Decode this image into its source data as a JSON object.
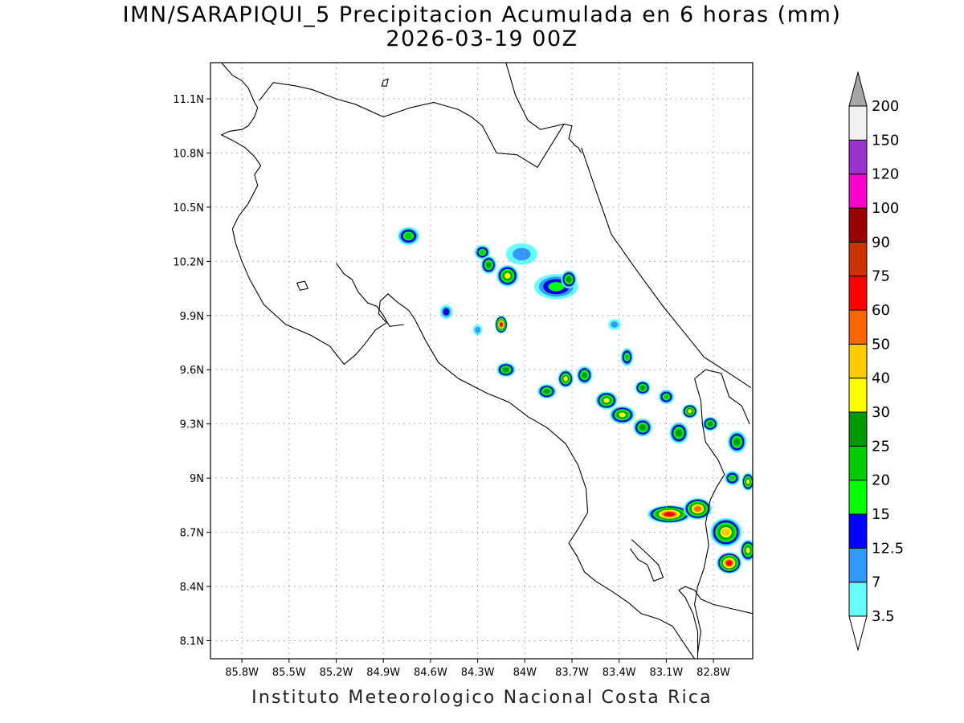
{
  "title": {
    "line1": "IMN/SARAPIQUI_5 Precipitacion Acumulada en 6 horas (mm)",
    "line2": "2026-03-19 00Z"
  },
  "footer": "Instituto Meteorologico Nacional Costa Rica",
  "map": {
    "lon_range": [
      -86.0,
      -82.55
    ],
    "lat_range": [
      8.0,
      11.3
    ],
    "lon_ticks": [
      {
        "value": -85.8,
        "label": "85.8W"
      },
      {
        "value": -85.5,
        "label": "85.5W"
      },
      {
        "value": -85.2,
        "label": "85.2W"
      },
      {
        "value": -84.9,
        "label": "84.9W"
      },
      {
        "value": -84.6,
        "label": "84.6W"
      },
      {
        "value": -84.3,
        "label": "84.3W"
      },
      {
        "value": -84.0,
        "label": "84W"
      },
      {
        "value": -83.7,
        "label": "83.7W"
      },
      {
        "value": -83.4,
        "label": "83.4W"
      },
      {
        "value": -83.1,
        "label": "83.1W"
      },
      {
        "value": -82.8,
        "label": "82.8W"
      }
    ],
    "lat_ticks": [
      {
        "value": 11.1,
        "label": "11.1N"
      },
      {
        "value": 10.8,
        "label": "10.8N"
      },
      {
        "value": 10.5,
        "label": "10.5N"
      },
      {
        "value": 10.2,
        "label": "10.2N"
      },
      {
        "value": 9.9,
        "label": "9.9N"
      },
      {
        "value": 9.6,
        "label": "9.6N"
      },
      {
        "value": 9.3,
        "label": "9.3N"
      },
      {
        "value": 9.0,
        "label": "9N"
      },
      {
        "value": 8.7,
        "label": "8.7N"
      },
      {
        "value": 8.4,
        "label": "8.4N"
      },
      {
        "value": 8.1,
        "label": "8.1N"
      }
    ],
    "grid": true,
    "coastlines": [
      [
        [
          -85.93,
          11.3
        ],
        [
          -85.86,
          11.23
        ],
        [
          -85.8,
          11.2
        ],
        [
          -85.76,
          11.16
        ],
        [
          -85.72,
          11.08
        ],
        [
          -85.7,
          11.05
        ],
        [
          -85.72,
          11.0
        ],
        [
          -85.76,
          10.95
        ],
        [
          -85.8,
          10.93
        ],
        [
          -85.88,
          10.92
        ],
        [
          -85.93,
          10.9
        ],
        [
          -85.86,
          10.87
        ],
        [
          -85.78,
          10.83
        ],
        [
          -85.72,
          10.78
        ],
        [
          -85.68,
          10.73
        ],
        [
          -85.72,
          10.68
        ],
        [
          -85.7,
          10.62
        ],
        [
          -85.76,
          10.52
        ],
        [
          -85.82,
          10.45
        ],
        [
          -85.86,
          10.38
        ],
        [
          -85.84,
          10.3
        ],
        [
          -85.8,
          10.2
        ],
        [
          -85.75,
          10.1
        ],
        [
          -85.66,
          9.96
        ],
        [
          -85.52,
          9.85
        ],
        [
          -85.36,
          9.79
        ],
        [
          -85.24,
          9.73
        ],
        [
          -85.15,
          9.63
        ],
        [
          -85.08,
          9.68
        ],
        [
          -85.02,
          9.74
        ],
        [
          -84.95,
          9.82
        ],
        [
          -84.88,
          9.86
        ],
        [
          -84.93,
          9.91
        ],
        [
          -84.92,
          9.98
        ],
        [
          -84.87,
          10.02
        ],
        [
          -84.82,
          9.98
        ],
        [
          -84.74,
          9.93
        ],
        [
          -84.7,
          9.88
        ],
        [
          -84.63,
          9.76
        ],
        [
          -84.55,
          9.64
        ],
        [
          -84.42,
          9.55
        ],
        [
          -84.24,
          9.47
        ],
        [
          -84.1,
          9.42
        ],
        [
          -83.98,
          9.34
        ],
        [
          -83.86,
          9.28
        ],
        [
          -83.74,
          9.19
        ],
        [
          -83.66,
          9.07
        ],
        [
          -83.61,
          8.94
        ],
        [
          -83.6,
          8.81
        ],
        [
          -83.66,
          8.72
        ],
        [
          -83.72,
          8.64
        ],
        [
          -83.67,
          8.57
        ],
        [
          -83.62,
          8.48
        ],
        [
          -83.55,
          8.43
        ],
        [
          -83.44,
          8.37
        ],
        [
          -83.34,
          8.31
        ],
        [
          -83.26,
          8.25
        ],
        [
          -83.15,
          8.22
        ],
        [
          -83.06,
          8.18
        ],
        [
          -82.96,
          8.05
        ],
        [
          -82.92,
          8.0
        ]
      ],
      [
        [
          -85.2,
          10.19
        ],
        [
          -85.15,
          10.13
        ],
        [
          -85.1,
          10.1
        ],
        [
          -85.06,
          10.03
        ],
        [
          -85.0,
          9.97
        ],
        [
          -84.94,
          9.95
        ],
        [
          -84.9,
          9.9
        ],
        [
          -84.86,
          9.84
        ],
        [
          -84.77,
          9.85
        ]
      ],
      [
        [
          -82.9,
          8.0
        ],
        [
          -82.9,
          8.15
        ],
        [
          -82.93,
          8.25
        ],
        [
          -82.98,
          8.34
        ],
        [
          -83.02,
          8.38
        ],
        [
          -82.98,
          8.4
        ],
        [
          -82.92,
          8.38
        ],
        [
          -82.88,
          8.33
        ],
        [
          -82.8,
          8.3
        ],
        [
          -82.7,
          8.28
        ],
        [
          -82.55,
          8.25
        ]
      ],
      [
        [
          -83.32,
          8.66
        ],
        [
          -83.22,
          8.58
        ],
        [
          -83.15,
          8.52
        ],
        [
          -83.12,
          8.45
        ],
        [
          -83.18,
          8.43
        ],
        [
          -83.22,
          8.52
        ],
        [
          -83.28,
          8.55
        ],
        [
          -83.33,
          8.61
        ]
      ],
      [
        [
          -85.69,
          11.09
        ],
        [
          -85.6,
          11.19
        ],
        [
          -85.45,
          11.17
        ],
        [
          -85.35,
          11.15
        ],
        [
          -85.2,
          11.1
        ],
        [
          -85.08,
          11.07
        ],
        [
          -84.9,
          11.0
        ],
        [
          -84.73,
          11.05
        ],
        [
          -84.58,
          11.08
        ],
        [
          -84.42,
          11.04
        ],
        [
          -84.34,
          11.0
        ],
        [
          -84.27,
          10.95
        ],
        [
          -84.18,
          10.8
        ],
        [
          -84.05,
          10.79
        ],
        [
          -83.92,
          10.72
        ],
        [
          -83.75,
          10.96
        ],
        [
          -83.7,
          10.95
        ],
        [
          -83.72,
          10.88
        ],
        [
          -83.68,
          10.84
        ],
        [
          -83.66,
          10.83
        ],
        [
          -83.64,
          10.8
        ]
      ],
      [
        [
          -83.64,
          10.83
        ],
        [
          -83.55,
          10.6
        ],
        [
          -83.45,
          10.35
        ],
        [
          -83.28,
          10.14
        ],
        [
          -83.12,
          9.95
        ],
        [
          -82.98,
          9.8
        ],
        [
          -82.86,
          9.67
        ],
        [
          -82.7,
          9.58
        ],
        [
          -82.56,
          9.5
        ]
      ],
      [
        [
          -84.12,
          11.3
        ],
        [
          -84.06,
          11.12
        ],
        [
          -83.98,
          10.98
        ],
        [
          -83.9,
          10.93
        ],
        [
          -83.75,
          10.96
        ]
      ]
    ],
    "borders": [
      [
        [
          -82.92,
          9.55
        ],
        [
          -82.85,
          9.6
        ],
        [
          -82.75,
          9.58
        ],
        [
          -82.7,
          9.45
        ],
        [
          -82.62,
          9.4
        ],
        [
          -82.57,
          9.3
        ]
      ],
      [
        [
          -82.9,
          8.03
        ],
        [
          -82.88,
          8.15
        ],
        [
          -82.92,
          8.3
        ],
        [
          -82.9,
          8.4
        ],
        [
          -82.86,
          8.5
        ],
        [
          -82.83,
          8.63
        ],
        [
          -82.85,
          8.75
        ],
        [
          -82.82,
          8.88
        ],
        [
          -82.78,
          8.95
        ],
        [
          -82.73,
          9.02
        ],
        [
          -82.77,
          9.1
        ],
        [
          -82.85,
          9.2
        ],
        [
          -82.87,
          9.3
        ],
        [
          -82.88,
          9.43
        ],
        [
          -82.92,
          9.55
        ]
      ]
    ],
    "islands": [
      [
        [
          -85.45,
          10.08
        ],
        [
          -85.4,
          10.09
        ],
        [
          -85.38,
          10.05
        ],
        [
          -85.43,
          10.04
        ]
      ],
      [
        [
          -84.9,
          11.2
        ],
        [
          -84.87,
          11.21
        ],
        [
          -84.88,
          11.17
        ],
        [
          -84.91,
          11.17
        ]
      ]
    ]
  },
  "precip": {
    "cells": [
      {
        "lon": -84.74,
        "lat": 10.34,
        "rx": 0.07,
        "ry": 0.05,
        "peak": 20
      },
      {
        "lon": -84.27,
        "lat": 10.25,
        "rx": 0.05,
        "ry": 0.04,
        "peak": 20
      },
      {
        "lon": -84.23,
        "lat": 10.18,
        "rx": 0.05,
        "ry": 0.05,
        "peak": 25
      },
      {
        "lon": -84.11,
        "lat": 10.12,
        "rx": 0.07,
        "ry": 0.06,
        "peak": 30
      },
      {
        "lon": -84.02,
        "lat": 10.24,
        "rx": 0.1,
        "ry": 0.06,
        "peak": 7
      },
      {
        "lon": -83.8,
        "lat": 10.06,
        "rx": 0.14,
        "ry": 0.07,
        "peak": 15
      },
      {
        "lon": -83.72,
        "lat": 10.1,
        "rx": 0.05,
        "ry": 0.05,
        "peak": 25
      },
      {
        "lon": -84.15,
        "lat": 9.85,
        "rx": 0.04,
        "ry": 0.05,
        "peak": 60
      },
      {
        "lon": -84.12,
        "lat": 9.6,
        "rx": 0.06,
        "ry": 0.04,
        "peak": 25
      },
      {
        "lon": -83.86,
        "lat": 9.48,
        "rx": 0.06,
        "ry": 0.04,
        "peak": 25
      },
      {
        "lon": -83.74,
        "lat": 9.55,
        "rx": 0.05,
        "ry": 0.05,
        "peak": 30
      },
      {
        "lon": -83.62,
        "lat": 9.57,
        "rx": 0.05,
        "ry": 0.05,
        "peak": 25
      },
      {
        "lon": -83.48,
        "lat": 9.43,
        "rx": 0.07,
        "ry": 0.05,
        "peak": 30
      },
      {
        "lon": -83.38,
        "lat": 9.35,
        "rx": 0.08,
        "ry": 0.05,
        "peak": 30
      },
      {
        "lon": -83.25,
        "lat": 9.28,
        "rx": 0.06,
        "ry": 0.05,
        "peak": 25
      },
      {
        "lon": -83.25,
        "lat": 9.5,
        "rx": 0.05,
        "ry": 0.04,
        "peak": 25
      },
      {
        "lon": -83.35,
        "lat": 9.67,
        "rx": 0.04,
        "ry": 0.05,
        "peak": 20
      },
      {
        "lon": -83.1,
        "lat": 9.45,
        "rx": 0.05,
        "ry": 0.04,
        "peak": 20
      },
      {
        "lon": -83.02,
        "lat": 9.25,
        "rx": 0.06,
        "ry": 0.06,
        "peak": 25
      },
      {
        "lon": -82.95,
        "lat": 9.37,
        "rx": 0.05,
        "ry": 0.04,
        "peak": 30
      },
      {
        "lon": -82.82,
        "lat": 9.3,
        "rx": 0.05,
        "ry": 0.04,
        "peak": 25
      },
      {
        "lon": -82.65,
        "lat": 9.2,
        "rx": 0.06,
        "ry": 0.06,
        "peak": 25
      },
      {
        "lon": -82.58,
        "lat": 8.98,
        "rx": 0.04,
        "ry": 0.05,
        "peak": 30
      },
      {
        "lon": -83.08,
        "lat": 8.8,
        "rx": 0.14,
        "ry": 0.05,
        "peak": 60
      },
      {
        "lon": -82.9,
        "lat": 8.83,
        "rx": 0.09,
        "ry": 0.06,
        "peak": 50
      },
      {
        "lon": -82.72,
        "lat": 8.7,
        "rx": 0.1,
        "ry": 0.08,
        "peak": 40
      },
      {
        "lon": -82.7,
        "lat": 8.53,
        "rx": 0.08,
        "ry": 0.06,
        "peak": 60
      },
      {
        "lon": -82.58,
        "lat": 8.6,
        "rx": 0.05,
        "ry": 0.06,
        "peak": 30
      },
      {
        "lon": -82.68,
        "lat": 9.0,
        "rx": 0.05,
        "ry": 0.04,
        "peak": 20
      },
      {
        "lon": -83.43,
        "lat": 9.85,
        "rx": 0.04,
        "ry": 0.03,
        "peak": 7
      },
      {
        "lon": -84.5,
        "lat": 9.92,
        "rx": 0.04,
        "ry": 0.04,
        "peak": 12.5
      },
      {
        "lon": -84.3,
        "lat": 9.82,
        "rx": 0.03,
        "ry": 0.03,
        "peak": 7
      }
    ]
  },
  "colorbar": {
    "levels": [
      "3.5",
      "7",
      "12.5",
      "15",
      "20",
      "25",
      "30",
      "40",
      "50",
      "60",
      "75",
      "90",
      "100",
      "120",
      "150",
      "200"
    ],
    "colors": [
      "#66ffff",
      "#3399ff",
      "#0000ff",
      "#00ff00",
      "#00cc00",
      "#009900",
      "#ffff00",
      "#ffcc00",
      "#ff6600",
      "#ff0000",
      "#cc3300",
      "#990000",
      "#ff00cc",
      "#9933cc",
      "#f2f2f2"
    ],
    "over_color": "#a6a6a6",
    "under_color": "#ffffff"
  }
}
